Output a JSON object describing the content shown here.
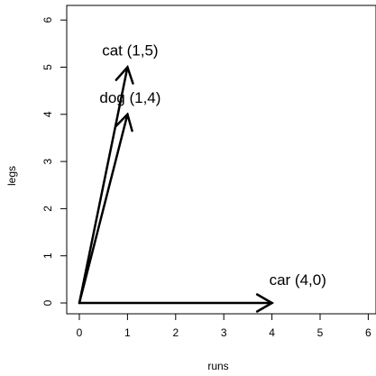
{
  "chart_data": {
    "type": "line",
    "xlabel": "runs",
    "ylabel": "legs",
    "xlim": [
      0,
      6
    ],
    "ylim": [
      0,
      6
    ],
    "xticks": [
      "0",
      "1",
      "2",
      "3",
      "4",
      "5",
      "6"
    ],
    "yticks": [
      "0",
      "1",
      "2",
      "3",
      "4",
      "5",
      "6"
    ],
    "grid": false,
    "origin": [
      0,
      0
    ],
    "vectors": [
      {
        "label": "cat (1,5)",
        "x": 1,
        "y": 5
      },
      {
        "label": "dog (1,4)",
        "x": 1,
        "y": 4
      },
      {
        "label": "car (4,0)",
        "x": 4,
        "y": 0
      }
    ],
    "colors": {
      "line": "#000000",
      "background": "#ffffff"
    }
  }
}
